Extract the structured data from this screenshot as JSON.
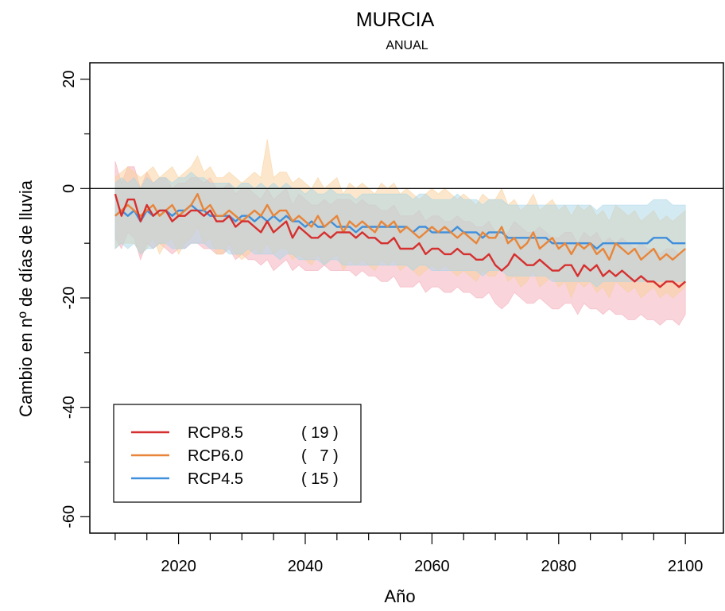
{
  "chart_data": {
    "type": "line",
    "title": "MURCIA",
    "subtitle": "ANUAL",
    "xlabel": "Año",
    "ylabel": "Cambio en nº de días de lluvia",
    "xlim": [
      2006,
      2106
    ],
    "ylim": [
      -63,
      23
    ],
    "x_ticks": [
      "2020",
      "2040",
      "2060",
      "2080",
      "2100"
    ],
    "y_ticks": [
      "20",
      "0",
      "-20",
      "-40",
      "-60"
    ],
    "reference_line": 0,
    "x": [
      2010,
      2011,
      2012,
      2013,
      2014,
      2015,
      2016,
      2017,
      2018,
      2019,
      2020,
      2021,
      2022,
      2023,
      2024,
      2025,
      2026,
      2027,
      2028,
      2029,
      2030,
      2031,
      2032,
      2033,
      2034,
      2035,
      2036,
      2037,
      2038,
      2039,
      2040,
      2041,
      2042,
      2043,
      2044,
      2045,
      2046,
      2047,
      2048,
      2049,
      2050,
      2051,
      2052,
      2053,
      2054,
      2055,
      2056,
      2057,
      2058,
      2059,
      2060,
      2061,
      2062,
      2063,
      2064,
      2065,
      2066,
      2067,
      2068,
      2069,
      2070,
      2071,
      2072,
      2073,
      2074,
      2075,
      2076,
      2077,
      2078,
      2079,
      2080,
      2081,
      2082,
      2083,
      2084,
      2085,
      2086,
      2087,
      2088,
      2089,
      2090,
      2091,
      2092,
      2093,
      2094,
      2095,
      2096,
      2097,
      2098,
      2099,
      2100
    ],
    "series": [
      {
        "name": "RCP8.5",
        "count": "( 19 )",
        "color": "#d62f2f",
        "band_color": "#f4a9b7",
        "values": [
          -1,
          -5,
          -2,
          -2,
          -6,
          -3,
          -5,
          -4,
          -4,
          -6,
          -5,
          -5,
          -4,
          -4,
          -5,
          -4,
          -6,
          -6,
          -5,
          -7,
          -6,
          -6,
          -7,
          -8,
          -6,
          -8,
          -7,
          -6,
          -9,
          -7,
          -8,
          -9,
          -9,
          -8,
          -9,
          -8,
          -8,
          -8,
          -9,
          -8,
          -9,
          -9,
          -10,
          -10,
          -9,
          -11,
          -11,
          -11,
          -10,
          -12,
          -11,
          -11,
          -12,
          -12,
          -11,
          -12,
          -12,
          -13,
          -13,
          -12,
          -14,
          -15,
          -14,
          -12,
          -13,
          -14,
          -14,
          -13,
          -14,
          -15,
          -15,
          -14,
          -14,
          -16,
          -14,
          -15,
          -14,
          -16,
          -15,
          -16,
          -15,
          -16,
          -17,
          -16,
          -17,
          -17,
          -18,
          -17,
          -17,
          -18,
          -17
        ],
        "band_low": [
          -9,
          -11,
          -8,
          -9,
          -13,
          -10,
          -11,
          -10,
          -11,
          -12,
          -11,
          -11,
          -10,
          -10,
          -11,
          -11,
          -12,
          -12,
          -11,
          -13,
          -12,
          -13,
          -13,
          -14,
          -13,
          -15,
          -14,
          -13,
          -15,
          -14,
          -15,
          -15,
          -15,
          -14,
          -15,
          -15,
          -15,
          -15,
          -16,
          -15,
          -16,
          -16,
          -17,
          -17,
          -16,
          -18,
          -18,
          -18,
          -17,
          -19,
          -18,
          -18,
          -19,
          -19,
          -18,
          -19,
          -19,
          -20,
          -20,
          -19,
          -21,
          -22,
          -21,
          -19,
          -20,
          -21,
          -21,
          -20,
          -21,
          -22,
          -22,
          -21,
          -21,
          -23,
          -21,
          -22,
          -22,
          -23,
          -22,
          -23,
          -23,
          -24,
          -24,
          -23,
          -24,
          -24,
          -25,
          -24,
          -24,
          -25,
          -23
        ],
        "band_high": [
          5,
          1,
          4,
          4,
          0,
          3,
          1,
          2,
          2,
          0,
          1,
          1,
          2,
          2,
          1,
          2,
          0,
          0,
          1,
          -1,
          0,
          0,
          -1,
          -2,
          0,
          -2,
          -1,
          0,
          -3,
          -1,
          -2,
          -3,
          -3,
          -2,
          -3,
          -2,
          -2,
          -2,
          -3,
          -2,
          -3,
          -3,
          -4,
          -4,
          -3,
          -5,
          -5,
          -5,
          -4,
          -6,
          -5,
          -5,
          -6,
          -6,
          -5,
          -6,
          -6,
          -7,
          -7,
          -6,
          -8,
          -9,
          -8,
          -6,
          -7,
          -8,
          -8,
          -7,
          -8,
          -9,
          -9,
          -8,
          -8,
          -10,
          -8,
          -9,
          -8,
          -10,
          -9,
          -10,
          -9,
          -10,
          -11,
          -10,
          -11,
          -11,
          -12,
          -11,
          -11,
          -12,
          -11
        ]
      },
      {
        "name": "RCP6.0",
        "count": "(   7 )",
        "color": "#e8853a",
        "band_color": "#f9cf9a",
        "values": [
          -5,
          -4,
          -3,
          -4,
          -5,
          -4,
          -3,
          -5,
          -4,
          -3,
          -5,
          -4,
          -3,
          -1,
          -4,
          -3,
          -5,
          -5,
          -4,
          -5,
          -6,
          -5,
          -4,
          -5,
          -3,
          -5,
          -4,
          -4,
          -6,
          -5,
          -6,
          -7,
          -5,
          -7,
          -6,
          -5,
          -8,
          -6,
          -7,
          -6,
          -7,
          -8,
          -6,
          -7,
          -6,
          -8,
          -7,
          -8,
          -9,
          -8,
          -7,
          -8,
          -7,
          -8,
          -9,
          -8,
          -9,
          -10,
          -8,
          -9,
          -9,
          -7,
          -10,
          -9,
          -11,
          -10,
          -8,
          -11,
          -10,
          -9,
          -11,
          -10,
          -12,
          -10,
          -11,
          -10,
          -12,
          -11,
          -13,
          -10,
          -11,
          -12,
          -11,
          -13,
          -12,
          -11,
          -13,
          -12,
          -13,
          -12,
          -11
        ],
        "band_low": [
          -11,
          -10,
          -10,
          -10,
          -12,
          -11,
          -9,
          -12,
          -10,
          -9,
          -12,
          -10,
          -9,
          -7,
          -10,
          -9,
          -12,
          -12,
          -10,
          -12,
          -13,
          -12,
          -11,
          -12,
          -10,
          -12,
          -11,
          -11,
          -13,
          -12,
          -13,
          -14,
          -12,
          -14,
          -13,
          -12,
          -15,
          -13,
          -14,
          -13,
          -14,
          -15,
          -13,
          -14,
          -13,
          -15,
          -14,
          -15,
          -16,
          -15,
          -14,
          -15,
          -14,
          -15,
          -16,
          -15,
          -16,
          -17,
          -15,
          -16,
          -16,
          -14,
          -17,
          -16,
          -18,
          -17,
          -15,
          -18,
          -17,
          -16,
          -18,
          -17,
          -20,
          -17,
          -18,
          -17,
          -19,
          -18,
          -20,
          -17,
          -18,
          -19,
          -18,
          -20,
          -19,
          -18,
          -20,
          -19,
          -20,
          -19,
          -18
        ],
        "band_high": [
          2,
          3,
          4,
          3,
          2,
          3,
          4,
          2,
          3,
          4,
          2,
          3,
          4,
          6,
          3,
          4,
          2,
          2,
          3,
          2,
          1,
          2,
          3,
          2,
          9,
          2,
          3,
          3,
          1,
          2,
          1,
          0,
          2,
          0,
          1,
          2,
          -1,
          1,
          0,
          1,
          0,
          -1,
          1,
          0,
          1,
          -1,
          0,
          -1,
          -2,
          -1,
          0,
          -1,
          0,
          -1,
          -2,
          -1,
          -2,
          -3,
          -1,
          -2,
          -2,
          0,
          -3,
          -2,
          -4,
          -3,
          -1,
          -4,
          -3,
          -2,
          -4,
          -3,
          -5,
          -3,
          -4,
          -3,
          -5,
          -4,
          -6,
          -3,
          -4,
          -5,
          -4,
          -6,
          -5,
          -4,
          -6,
          -5,
          -6,
          -5,
          -4
        ]
      },
      {
        "name": "RCP4.5",
        "count": "( 15 )",
        "color": "#3f8fdc",
        "band_color": "#a9d5e6",
        "values": [
          -5,
          -4,
          -5,
          -4,
          -6,
          -4,
          -5,
          -4,
          -4,
          -5,
          -4,
          -4,
          -3,
          -4,
          -4,
          -5,
          -5,
          -5,
          -5,
          -6,
          -5,
          -5,
          -6,
          -5,
          -6,
          -5,
          -6,
          -5,
          -6,
          -6,
          -7,
          -6,
          -7,
          -7,
          -6,
          -7,
          -7,
          -7,
          -8,
          -7,
          -7,
          -7,
          -7,
          -7,
          -7,
          -7,
          -7,
          -8,
          -7,
          -7,
          -8,
          -8,
          -8,
          -8,
          -7,
          -8,
          -8,
          -8,
          -9,
          -8,
          -8,
          -8,
          -9,
          -9,
          -9,
          -9,
          -9,
          -9,
          -9,
          -10,
          -10,
          -10,
          -10,
          -10,
          -10,
          -10,
          -11,
          -10,
          -10,
          -10,
          -10,
          -10,
          -10,
          -10,
          -10,
          -9,
          -9,
          -9,
          -10,
          -10,
          -10
        ],
        "band_low": [
          -11,
          -10,
          -11,
          -10,
          -12,
          -11,
          -11,
          -10,
          -10,
          -11,
          -11,
          -11,
          -10,
          -10,
          -10,
          -11,
          -11,
          -11,
          -12,
          -12,
          -12,
          -11,
          -12,
          -12,
          -12,
          -12,
          -13,
          -12,
          -12,
          -13,
          -13,
          -13,
          -13,
          -14,
          -13,
          -13,
          -14,
          -14,
          -14,
          -14,
          -14,
          -14,
          -14,
          -14,
          -14,
          -14,
          -14,
          -15,
          -14,
          -14,
          -15,
          -15,
          -15,
          -15,
          -15,
          -15,
          -15,
          -15,
          -16,
          -15,
          -15,
          -15,
          -16,
          -16,
          -16,
          -16,
          -16,
          -16,
          -16,
          -17,
          -17,
          -17,
          -17,
          -17,
          -17,
          -17,
          -18,
          -17,
          -17,
          -17,
          -17,
          -17,
          -17,
          -17,
          -17,
          -17,
          -17,
          -17,
          -17,
          -17,
          -17
        ],
        "band_high": [
          1,
          2,
          1,
          2,
          0,
          2,
          1,
          2,
          2,
          1,
          2,
          2,
          3,
          2,
          2,
          1,
          1,
          1,
          1,
          0,
          1,
          1,
          0,
          1,
          0,
          1,
          0,
          1,
          0,
          0,
          -1,
          0,
          -1,
          -1,
          0,
          -1,
          -1,
          -1,
          -2,
          -1,
          -1,
          -1,
          -1,
          -1,
          -1,
          -1,
          -1,
          -2,
          -1,
          -1,
          -2,
          -2,
          -2,
          -2,
          -1,
          -2,
          -2,
          -2,
          -3,
          -2,
          -2,
          -2,
          -3,
          -3,
          -3,
          -3,
          -3,
          -3,
          -3,
          -3,
          -3,
          -3,
          -3,
          -3,
          -3,
          -3,
          -4,
          -3,
          -3,
          -3,
          -3,
          -3,
          -3,
          -3,
          -3,
          -2,
          -2,
          -2,
          -3,
          -3,
          -3
        ]
      }
    ],
    "legend": {
      "position": "bottom-left"
    }
  }
}
